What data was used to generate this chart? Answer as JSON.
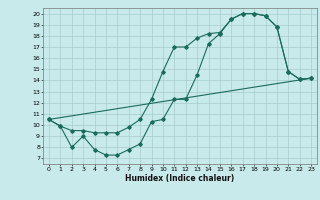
{
  "title": "",
  "xlabel": "Humidex (Indice chaleur)",
  "xlim": [
    -0.5,
    23.5
  ],
  "ylim": [
    6.5,
    20.5
  ],
  "yticks": [
    7,
    8,
    9,
    10,
    11,
    12,
    13,
    14,
    15,
    16,
    17,
    18,
    19,
    20
  ],
  "xticks": [
    0,
    1,
    2,
    3,
    4,
    5,
    6,
    7,
    8,
    9,
    10,
    11,
    12,
    13,
    14,
    15,
    16,
    17,
    18,
    19,
    20,
    21,
    22,
    23
  ],
  "bg_color": "#c8eaea",
  "line_color": "#1a6b5a",
  "grid_color": "#a8cccc",
  "line1_x": [
    0,
    1,
    2,
    3,
    4,
    5,
    6,
    7,
    8,
    9,
    10,
    11,
    12,
    13,
    14,
    15,
    16,
    17,
    18,
    19,
    20,
    21,
    22,
    23
  ],
  "line1_y": [
    10.5,
    9.9,
    9.5,
    9.5,
    9.3,
    9.3,
    9.3,
    9.8,
    10.5,
    12.3,
    14.8,
    17.0,
    17.0,
    17.8,
    18.2,
    18.3,
    19.5,
    20.0,
    20.0,
    19.8,
    18.8,
    14.8,
    14.1,
    14.2
  ],
  "line2_x": [
    0,
    1,
    2,
    3,
    4,
    5,
    6,
    7,
    8,
    9,
    10,
    11,
    12,
    13,
    14,
    15,
    16,
    17,
    18,
    19,
    20,
    21,
    22,
    23
  ],
  "line2_y": [
    10.5,
    9.9,
    8.0,
    9.0,
    7.8,
    7.3,
    7.3,
    7.8,
    8.3,
    10.3,
    10.5,
    12.3,
    12.3,
    14.5,
    17.3,
    18.2,
    19.5,
    20.0,
    20.0,
    19.8,
    18.8,
    14.8,
    14.1,
    14.2
  ],
  "line3_x": [
    0,
    23
  ],
  "line3_y": [
    10.5,
    14.2
  ]
}
